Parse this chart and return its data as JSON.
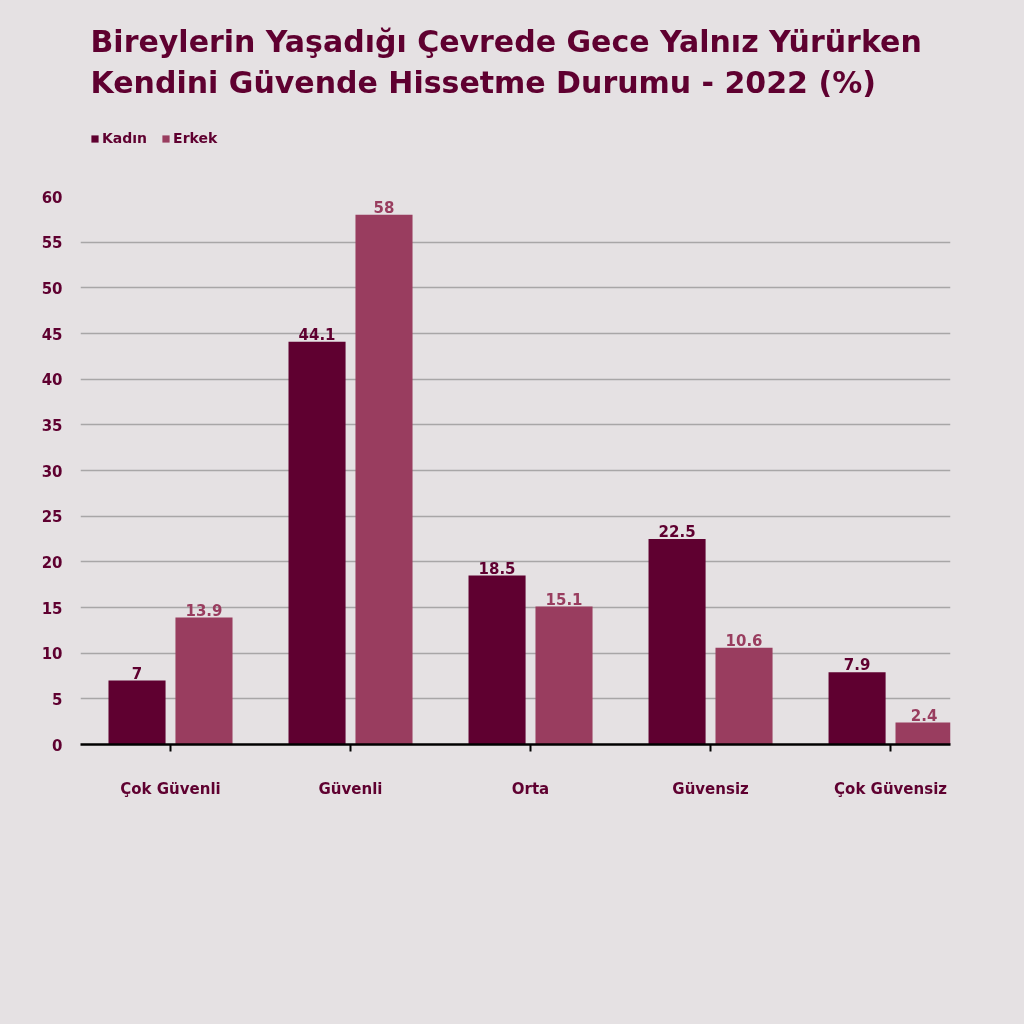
{
  "chart_data": {
    "type": "bar",
    "title": "Bireylerin Yaşadığı Çevrede Gece Yalnız Yürürken Kendini Güvende Hissetme Durumu - 2022 (%)",
    "categories": [
      "Çok Güvenli",
      "Güvenli",
      "Orta",
      "Güvensiz",
      "Çok Güvensiz"
    ],
    "series": [
      {
        "name": "Kadın",
        "color": "#5f0030",
        "values": [
          7,
          44.1,
          18.5,
          22.5,
          7.9
        ]
      },
      {
        "name": "Erkek",
        "color": "#993d5f",
        "values": [
          13.9,
          58,
          15.1,
          10.6,
          2.4
        ]
      }
    ],
    "ylim": [
      0,
      60
    ],
    "yticks": [
      0,
      5,
      10,
      15,
      20,
      25,
      30,
      35,
      40,
      45,
      50,
      55,
      60
    ],
    "grid": "y",
    "legend": "top left",
    "data_labels": true
  }
}
